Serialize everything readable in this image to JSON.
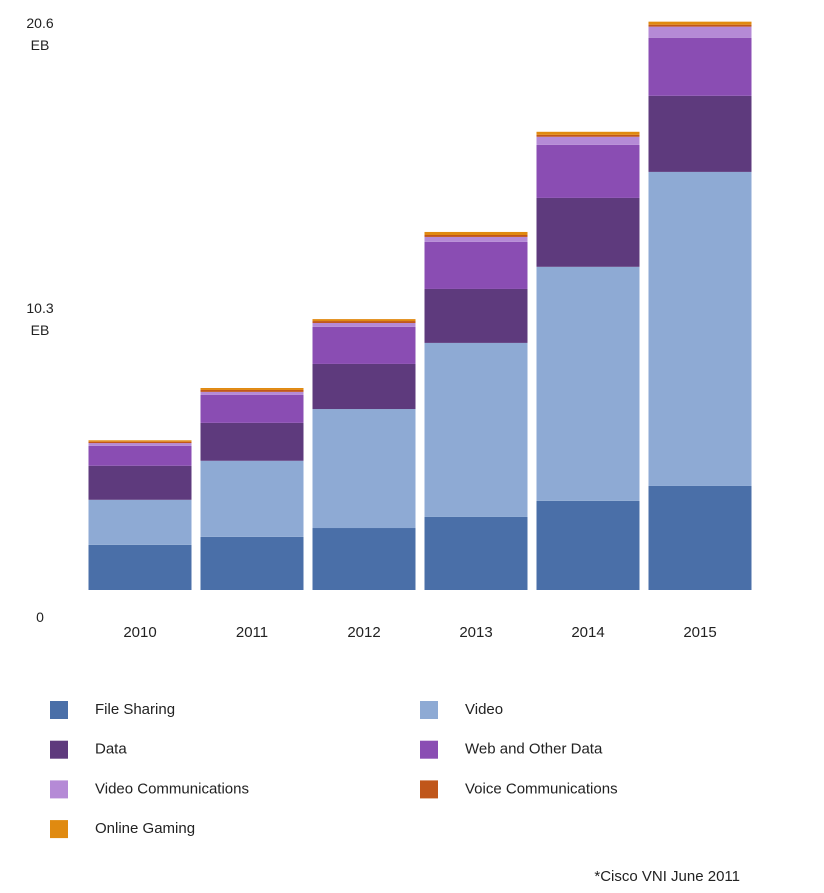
{
  "chart_data": {
    "type": "stacked_bar",
    "categories": [
      "2010",
      "2011",
      "2012",
      "2013",
      "2014",
      "2015"
    ],
    "series": [
      {
        "name": "File Sharing",
        "color": "#4a6fa8",
        "values": [
          1.63,
          1.92,
          2.24,
          2.64,
          3.22,
          3.76
        ]
      },
      {
        "name": "Video",
        "color": "#8eaad4",
        "values": [
          1.63,
          2.75,
          4.3,
          6.29,
          8.46,
          11.35
        ]
      },
      {
        "name": "Data",
        "color": "#5e3a7d",
        "values": [
          1.23,
          1.37,
          1.63,
          1.95,
          2.49,
          2.75
        ]
      },
      {
        "name": "Web and Other Data",
        "color": "#8a4db3",
        "values": [
          0.72,
          1.01,
          1.34,
          1.7,
          1.92,
          2.1
        ]
      },
      {
        "name": "Video Communications",
        "color": "#b58ad6",
        "values": [
          0.1,
          0.11,
          0.14,
          0.18,
          0.29,
          0.4
        ]
      },
      {
        "name": "Voice Communications",
        "color": "#c0561a",
        "values": [
          0.05,
          0.07,
          0.07,
          0.07,
          0.07,
          0.07
        ]
      },
      {
        "name": "Online Gaming",
        "color": "#e08a10",
        "values": [
          0.05,
          0.07,
          0.07,
          0.11,
          0.11,
          0.11
        ]
      }
    ],
    "ylim": [
      0,
      20.6
    ],
    "yticks": [
      0,
      {
        "value": 10.3,
        "label": "10.3 EB"
      },
      {
        "value": 20.6,
        "label": "20.6 EB"
      }
    ],
    "grid": false,
    "footnote": "*Cisco VNI June 2011"
  }
}
